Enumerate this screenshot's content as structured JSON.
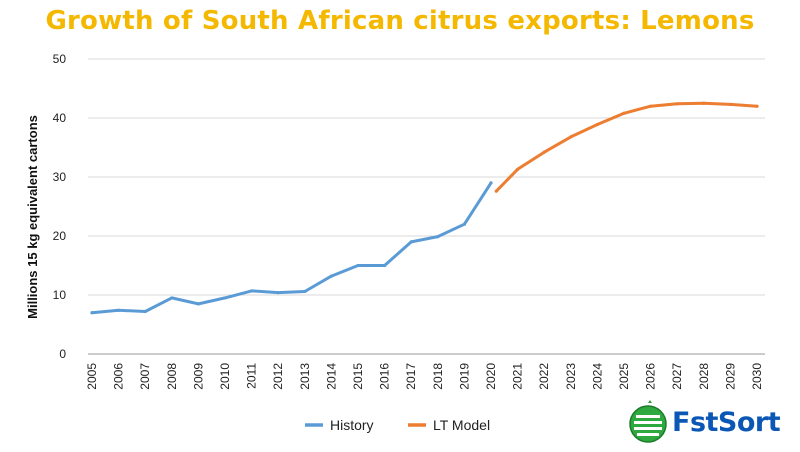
{
  "chart_data": {
    "type": "line",
    "title": "Growth of South African citrus exports: Lemons",
    "ylabel": "Millions 15 kg equivalent cartons",
    "xlabel": "",
    "ylim": [
      0,
      50
    ],
    "yticks": [
      0,
      10,
      20,
      30,
      40,
      50
    ],
    "categories": [
      "2005",
      "2006",
      "2007",
      "2008",
      "2009",
      "2010",
      "2011",
      "2012",
      "2013",
      "2014",
      "2015",
      "2016",
      "2017",
      "2018",
      "2019",
      "2020",
      "2021",
      "2022",
      "2023",
      "2024",
      "2025",
      "2026",
      "2027",
      "2028",
      "2029",
      "2030"
    ],
    "grid": true,
    "legend_position": "bottom",
    "series": [
      {
        "name": "History",
        "color": "#5b9bd5",
        "x": [
          2005,
          2006,
          2007,
          2008,
          2009,
          2010,
          2011,
          2012,
          2013,
          2014,
          2015,
          2016,
          2017,
          2018,
          2019,
          2020
        ],
        "values": [
          7.0,
          7.4,
          7.2,
          9.5,
          8.5,
          9.5,
          10.7,
          10.4,
          10.6,
          13.2,
          15.0,
          15.0,
          19.0,
          19.9,
          22.0,
          29.0
        ]
      },
      {
        "name": "LT Model",
        "color": "#ed7d31",
        "x": [
          2020.2,
          2021,
          2022,
          2023,
          2024,
          2025,
          2026,
          2027,
          2028,
          2029,
          2030
        ],
        "values": [
          27.6,
          31.3,
          34.2,
          36.8,
          38.9,
          40.8,
          42.0,
          42.4,
          42.5,
          42.3,
          42.0
        ]
      }
    ]
  },
  "logo": {
    "text": "FstSort",
    "icon": "globe-icon",
    "color": "#0b57b5"
  }
}
